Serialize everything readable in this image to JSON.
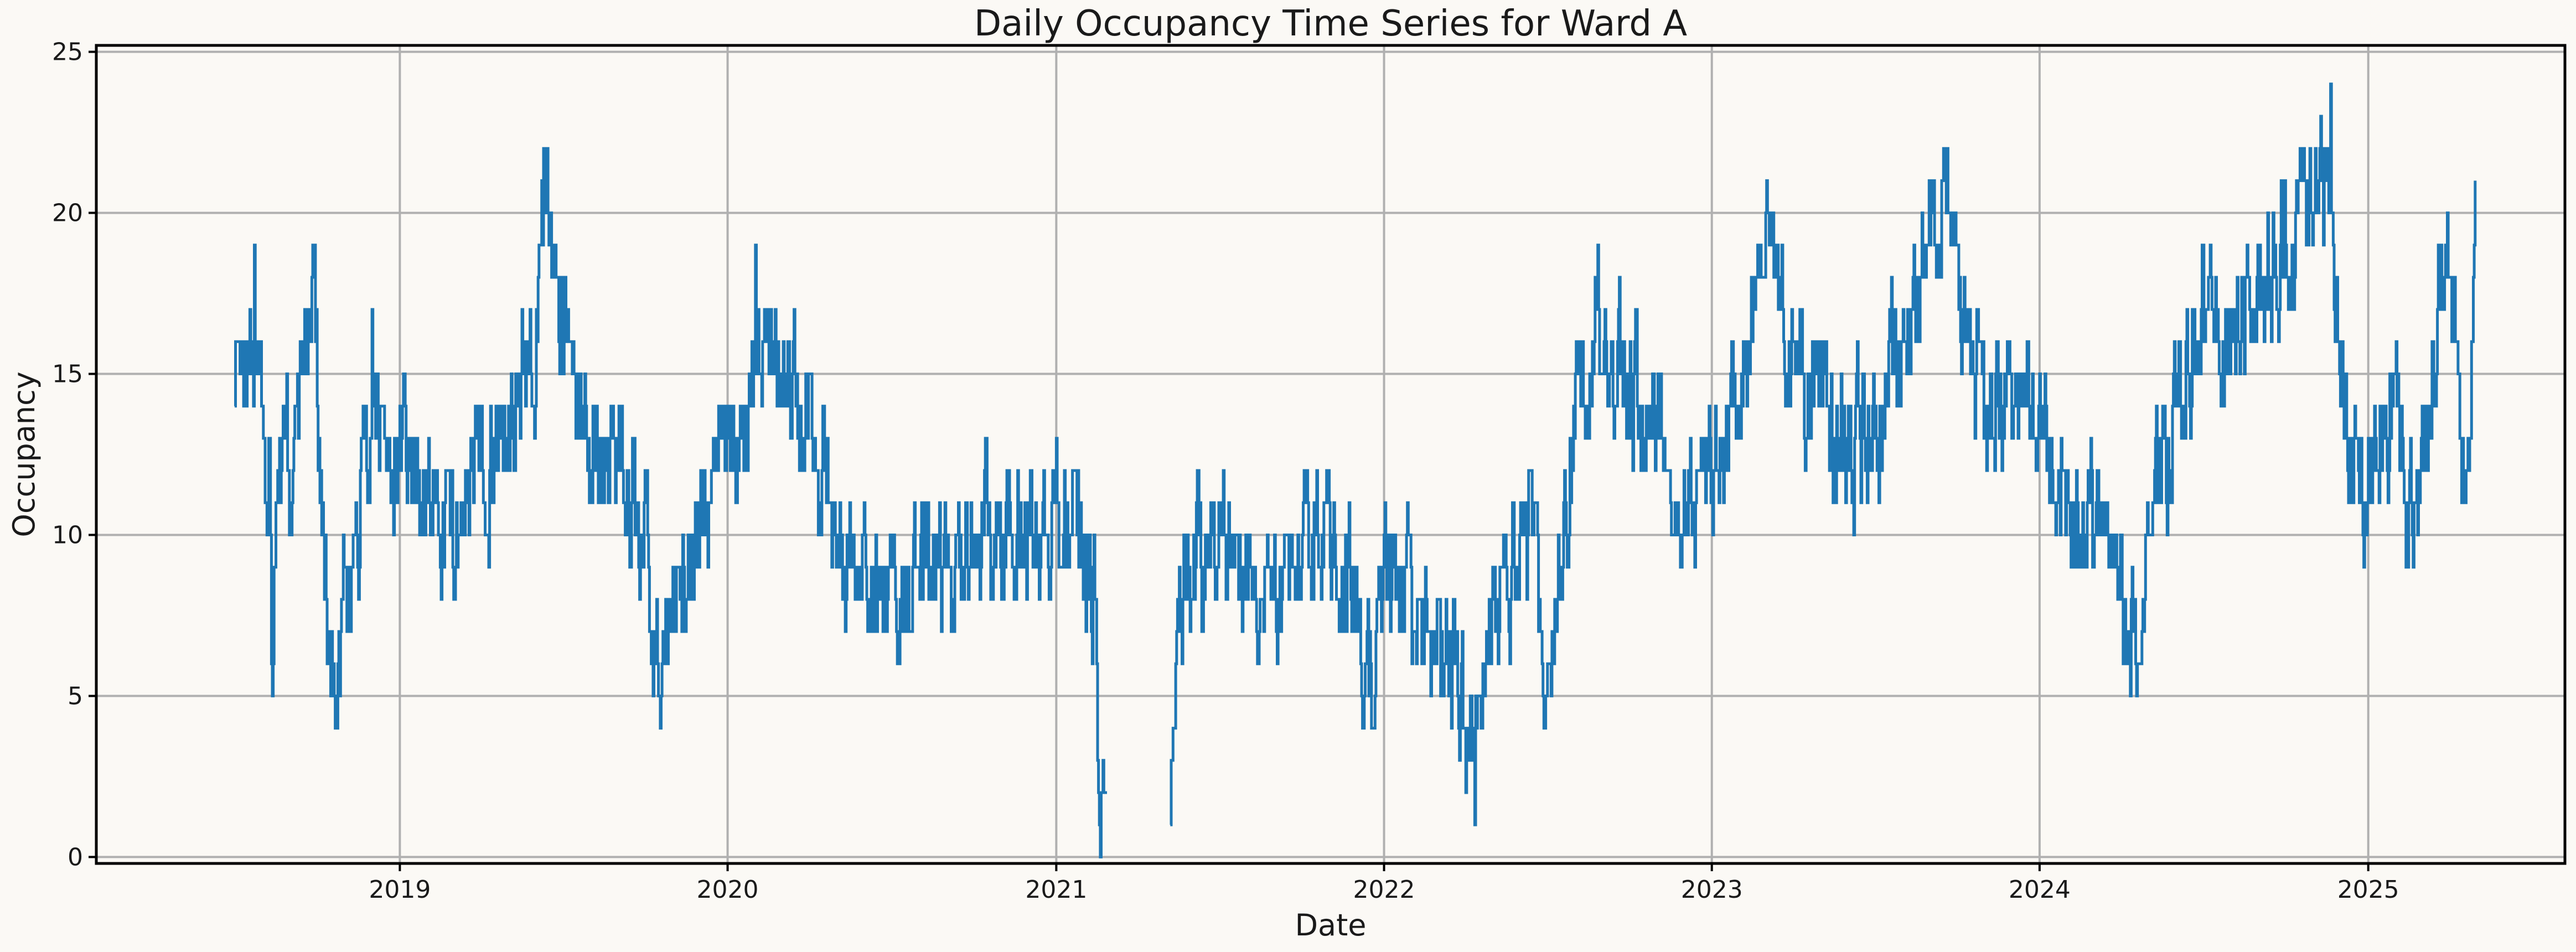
{
  "chart_data": {
    "type": "line",
    "title": "Daily Occupancy Time Series for Ward A",
    "xlabel": "Date",
    "ylabel": "Occupancy",
    "x_start": "2018-07-01",
    "x_end": "2025-04-30",
    "xlim": [
      "2018-01-28",
      "2025-08-08"
    ],
    "ylim": [
      -0.2,
      25.2
    ],
    "x_ticks": [
      "2019",
      "2020",
      "2021",
      "2022",
      "2023",
      "2024",
      "2025"
    ],
    "y_ticks": [
      0,
      5,
      10,
      15,
      20,
      25
    ],
    "grid": true,
    "colors": {
      "line": "#1f77b4",
      "background": "#fbf9f5",
      "grid": "#b0b0b0",
      "axes": "#000000"
    },
    "gaps": [
      {
        "from": "2021-02-24",
        "to": "2021-05-08"
      }
    ],
    "anchors": [
      [
        "2018-07-01",
        14
      ],
      [
        "2018-07-08",
        16
      ],
      [
        "2018-07-15",
        15
      ],
      [
        "2018-07-23",
        16
      ],
      [
        "2018-08-01",
        14
      ],
      [
        "2018-08-08",
        12
      ],
      [
        "2018-08-12",
        5
      ],
      [
        "2018-08-16",
        10
      ],
      [
        "2018-08-22",
        12
      ],
      [
        "2018-09-01",
        12
      ],
      [
        "2018-09-10",
        15
      ],
      [
        "2018-09-20",
        17
      ],
      [
        "2018-09-28",
        18
      ],
      [
        "2018-10-04",
        11
      ],
      [
        "2018-10-10",
        9
      ],
      [
        "2018-10-22",
        5
      ],
      [
        "2018-11-01",
        8
      ],
      [
        "2018-11-15",
        10
      ],
      [
        "2018-12-01",
        13
      ],
      [
        "2018-12-15",
        13
      ],
      [
        "2019-01-01",
        12
      ],
      [
        "2019-02-01",
        11
      ],
      [
        "2019-03-01",
        10
      ],
      [
        "2019-03-20",
        12
      ],
      [
        "2019-04-15",
        13
      ],
      [
        "2019-05-10",
        14
      ],
      [
        "2019-06-01",
        16
      ],
      [
        "2019-06-10",
        21
      ],
      [
        "2019-06-25",
        18
      ],
      [
        "2019-07-10",
        15
      ],
      [
        "2019-08-01",
        13
      ],
      [
        "2019-09-01",
        12
      ],
      [
        "2019-10-01",
        10
      ],
      [
        "2019-10-12",
        6
      ],
      [
        "2019-11-01",
        8
      ],
      [
        "2019-12-01",
        10
      ],
      [
        "2019-12-20",
        12
      ],
      [
        "2020-01-10",
        13
      ],
      [
        "2020-02-01",
        16
      ],
      [
        "2020-03-01",
        15
      ],
      [
        "2020-04-01",
        13
      ],
      [
        "2020-05-01",
        11
      ],
      [
        "2020-06-01",
        8
      ],
      [
        "2020-07-01",
        8
      ],
      [
        "2020-08-01",
        9
      ],
      [
        "2020-09-01",
        8
      ],
      [
        "2020-10-01",
        10
      ],
      [
        "2020-11-01",
        10
      ],
      [
        "2020-12-01",
        10
      ],
      [
        "2021-01-01",
        11
      ],
      [
        "2021-02-01",
        9
      ],
      [
        "2021-02-12",
        9
      ],
      [
        "2021-02-17",
        2
      ],
      [
        "2021-02-24",
        2
      ],
      [
        "2021-05-08",
        1
      ],
      [
        "2021-05-15",
        6
      ],
      [
        "2021-06-01",
        9
      ],
      [
        "2021-07-01",
        10
      ],
      [
        "2021-08-01",
        9
      ],
      [
        "2021-09-01",
        8
      ],
      [
        "2021-10-01",
        10
      ],
      [
        "2021-11-01",
        10
      ],
      [
        "2021-12-01",
        8
      ],
      [
        "2021-12-20",
        4
      ],
      [
        "2022-01-05",
        9
      ],
      [
        "2022-02-01",
        8
      ],
      [
        "2022-03-01",
        6
      ],
      [
        "2022-03-25",
        6
      ],
      [
        "2022-04-05",
        2
      ],
      [
        "2022-04-12",
        3
      ],
      [
        "2022-05-01",
        7
      ],
      [
        "2022-06-01",
        9
      ],
      [
        "2022-06-15",
        10
      ],
      [
        "2022-07-01",
        5
      ],
      [
        "2022-07-15",
        9
      ],
      [
        "2022-08-01",
        14
      ],
      [
        "2022-09-01",
        17
      ],
      [
        "2022-10-01",
        14
      ],
      [
        "2022-11-01",
        14
      ],
      [
        "2022-12-01",
        11
      ],
      [
        "2023-01-01",
        12
      ],
      [
        "2023-02-01",
        15
      ],
      [
        "2023-03-01",
        19
      ],
      [
        "2023-04-01",
        15
      ],
      [
        "2023-05-01",
        14
      ],
      [
        "2023-06-01",
        13
      ],
      [
        "2023-07-01",
        13
      ],
      [
        "2023-08-01",
        16
      ],
      [
        "2023-09-01",
        19
      ],
      [
        "2023-09-20",
        21
      ],
      [
        "2023-10-10",
        16
      ],
      [
        "2023-11-01",
        14
      ],
      [
        "2023-12-01",
        15
      ],
      [
        "2024-01-01",
        13
      ],
      [
        "2024-02-01",
        12
      ],
      [
        "2024-03-01",
        10
      ],
      [
        "2024-04-01",
        9
      ],
      [
        "2024-04-20",
        7
      ],
      [
        "2024-05-10",
        11
      ],
      [
        "2024-06-01",
        14
      ],
      [
        "2024-07-01",
        17
      ],
      [
        "2024-08-01",
        16
      ],
      [
        "2024-09-01",
        17
      ],
      [
        "2024-10-01",
        19
      ],
      [
        "2024-11-01",
        20
      ],
      [
        "2024-11-20",
        21
      ],
      [
        "2024-12-01",
        15
      ],
      [
        "2024-12-25",
        11
      ],
      [
        "2025-01-10",
        13
      ],
      [
        "2025-02-01",
        15
      ],
      [
        "2025-02-15",
        10
      ],
      [
        "2025-03-01",
        12
      ],
      [
        "2025-03-25",
        19
      ],
      [
        "2025-04-05",
        17
      ],
      [
        "2025-04-20",
        11
      ],
      [
        "2025-04-30",
        19
      ]
    ],
    "extremes": [
      [
        "2018-07-23",
        19
      ],
      [
        "2018-08-12",
        5
      ],
      [
        "2018-09-28",
        19
      ],
      [
        "2018-10-22",
        5
      ],
      [
        "2018-12-01",
        17
      ],
      [
        "2019-06-10",
        22
      ],
      [
        "2019-10-12",
        6
      ],
      [
        "2020-02-01",
        19
      ],
      [
        "2021-02-24",
        2
      ],
      [
        "2021-05-08",
        1
      ],
      [
        "2021-12-20",
        4
      ],
      [
        "2022-04-12",
        1
      ],
      [
        "2022-07-01",
        5
      ],
      [
        "2023-09-20",
        22
      ],
      [
        "2024-04-20",
        6
      ],
      [
        "2024-11-20",
        24
      ]
    ]
  }
}
